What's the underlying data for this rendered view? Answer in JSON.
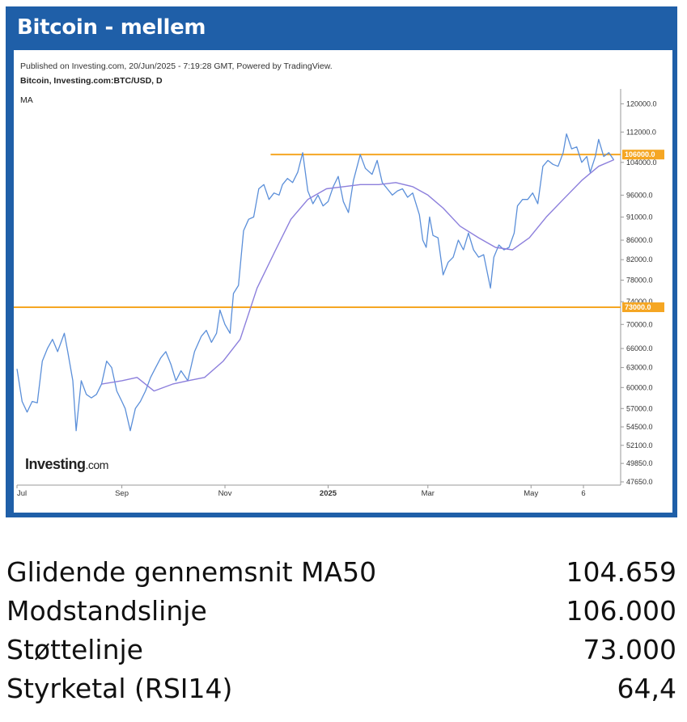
{
  "header": {
    "title": "Bitcoin - mellem"
  },
  "chart": {
    "published": "Published on Investing.com, 20/Jun/2025 - 7:19:28 GMT, Powered by TradingView.",
    "symbol": "Bitcoin, Investing.com:BTC/USD, D",
    "indicator_label": "MA",
    "logo_main": "Investing",
    "logo_suffix": ".com"
  },
  "chart_data": {
    "type": "line",
    "y_scale": "log",
    "ylim": [
      47650,
      122000
    ],
    "y_ticks": [
      "120000.0",
      "112000.0",
      "104000.0",
      "96000.0",
      "91000.0",
      "86000.0",
      "82000.0",
      "78000.0",
      "74000.0",
      "70000.0",
      "66000.0",
      "63000.0",
      "60000.0",
      "57000.0",
      "54500.0",
      "52100.0",
      "49850.0",
      "47650.0"
    ],
    "x_ticks": [
      "Jul",
      "Sep",
      "Nov",
      "2025",
      "Mar",
      "May",
      "6"
    ],
    "horizontal_levels": [
      {
        "value": 106000,
        "label": "106000.0",
        "color": "#f5a623"
      },
      {
        "value": 73000,
        "label": "73000.0",
        "color": "#f5a623"
      }
    ],
    "series": [
      {
        "name": "BTC/USD",
        "color": "#5b8fd9",
        "values": [
          [
            "2024-07-01",
            62800
          ],
          [
            "2024-07-04",
            58000
          ],
          [
            "2024-07-07",
            56500
          ],
          [
            "2024-07-10",
            58000
          ],
          [
            "2024-07-13",
            57800
          ],
          [
            "2024-07-16",
            64000
          ],
          [
            "2024-07-19",
            66000
          ],
          [
            "2024-07-22",
            67500
          ],
          [
            "2024-07-25",
            65500
          ],
          [
            "2024-07-29",
            68500
          ],
          [
            "2024-07-31",
            65500
          ],
          [
            "2024-08-03",
            61000
          ],
          [
            "2024-08-05",
            54000
          ],
          [
            "2024-08-08",
            61000
          ],
          [
            "2024-08-11",
            59000
          ],
          [
            "2024-08-14",
            58500
          ],
          [
            "2024-08-17",
            59000
          ],
          [
            "2024-08-20",
            60500
          ],
          [
            "2024-08-23",
            64000
          ],
          [
            "2024-08-26",
            63000
          ],
          [
            "2024-08-29",
            59500
          ],
          [
            "2024-09-01",
            58000
          ],
          [
            "2024-09-03",
            57000
          ],
          [
            "2024-09-06",
            54000
          ],
          [
            "2024-09-09",
            57000
          ],
          [
            "2024-09-12",
            58000
          ],
          [
            "2024-09-15",
            59500
          ],
          [
            "2024-09-18",
            61500
          ],
          [
            "2024-09-21",
            63000
          ],
          [
            "2024-09-24",
            64500
          ],
          [
            "2024-09-27",
            65500
          ],
          [
            "2024-09-30",
            63500
          ],
          [
            "2024-10-03",
            61000
          ],
          [
            "2024-10-06",
            62500
          ],
          [
            "2024-10-10",
            61000
          ],
          [
            "2024-10-14",
            65500
          ],
          [
            "2024-10-18",
            68000
          ],
          [
            "2024-10-21",
            69000
          ],
          [
            "2024-10-24",
            67000
          ],
          [
            "2024-10-27",
            68500
          ],
          [
            "2024-10-29",
            72500
          ],
          [
            "2024-11-01",
            70000
          ],
          [
            "2024-11-04",
            68500
          ],
          [
            "2024-11-06",
            75500
          ],
          [
            "2024-11-09",
            77000
          ],
          [
            "2024-11-12",
            88000
          ],
          [
            "2024-11-15",
            90500
          ],
          [
            "2024-11-18",
            91000
          ],
          [
            "2024-11-21",
            97500
          ],
          [
            "2024-11-24",
            98500
          ],
          [
            "2024-11-27",
            95000
          ],
          [
            "2024-11-30",
            96500
          ],
          [
            "2024-12-03",
            96000
          ],
          [
            "2024-12-05",
            98500
          ],
          [
            "2024-12-08",
            100000
          ],
          [
            "2024-12-11",
            99000
          ],
          [
            "2024-12-14",
            101500
          ],
          [
            "2024-12-17",
            106500
          ],
          [
            "2024-12-20",
            97000
          ],
          [
            "2024-12-23",
            94000
          ],
          [
            "2024-12-26",
            96000
          ],
          [
            "2024-12-29",
            93500
          ],
          [
            "2025-01-01",
            94500
          ],
          [
            "2025-01-04",
            98000
          ],
          [
            "2025-01-07",
            100500
          ],
          [
            "2025-01-10",
            94500
          ],
          [
            "2025-01-13",
            92000
          ],
          [
            "2025-01-16",
            99500
          ],
          [
            "2025-01-20",
            106000
          ],
          [
            "2025-01-23",
            102500
          ],
          [
            "2025-01-27",
            101000
          ],
          [
            "2025-01-30",
            104500
          ],
          [
            "2025-02-02",
            99000
          ],
          [
            "2025-02-05",
            97500
          ],
          [
            "2025-02-08",
            96000
          ],
          [
            "2025-02-11",
            97000
          ],
          [
            "2025-02-14",
            97500
          ],
          [
            "2025-02-17",
            95500
          ],
          [
            "2025-02-20",
            96500
          ],
          [
            "2025-02-24",
            91500
          ],
          [
            "2025-02-26",
            86000
          ],
          [
            "2025-02-28",
            84500
          ],
          [
            "2025-03-02",
            91000
          ],
          [
            "2025-03-04",
            87000
          ],
          [
            "2025-03-07",
            86500
          ],
          [
            "2025-03-10",
            79000
          ],
          [
            "2025-03-13",
            81500
          ],
          [
            "2025-03-16",
            82500
          ],
          [
            "2025-03-19",
            86000
          ],
          [
            "2025-03-22",
            84000
          ],
          [
            "2025-03-25",
            87500
          ],
          [
            "2025-03-28",
            84000
          ],
          [
            "2025-03-31",
            82500
          ],
          [
            "2025-04-03",
            83000
          ],
          [
            "2025-04-07",
            76500
          ],
          [
            "2025-04-09",
            82500
          ],
          [
            "2025-04-12",
            85000
          ],
          [
            "2025-04-15",
            84000
          ],
          [
            "2025-04-18",
            84500
          ],
          [
            "2025-04-21",
            87500
          ],
          [
            "2025-04-23",
            93500
          ],
          [
            "2025-04-26",
            95000
          ],
          [
            "2025-04-29",
            95000
          ],
          [
            "2025-05-02",
            96500
          ],
          [
            "2025-05-05",
            94000
          ],
          [
            "2025-05-08",
            103000
          ],
          [
            "2025-05-11",
            104500
          ],
          [
            "2025-05-14",
            103500
          ],
          [
            "2025-05-17",
            103000
          ],
          [
            "2025-05-20",
            106500
          ],
          [
            "2025-05-22",
            111500
          ],
          [
            "2025-05-25",
            107500
          ],
          [
            "2025-05-28",
            108000
          ],
          [
            "2025-05-31",
            104000
          ],
          [
            "2025-06-03",
            105500
          ],
          [
            "2025-06-05",
            101500
          ],
          [
            "2025-06-08",
            105500
          ],
          [
            "2025-06-10",
            110000
          ],
          [
            "2025-06-13",
            105500
          ],
          [
            "2025-06-16",
            106500
          ],
          [
            "2025-06-19",
            104600
          ]
        ]
      },
      {
        "name": "MA50",
        "color": "#8c7fdc",
        "values": [
          [
            "2024-08-20",
            60500
          ],
          [
            "2024-09-01",
            61000
          ],
          [
            "2024-09-10",
            61500
          ],
          [
            "2024-09-20",
            59500
          ],
          [
            "2024-10-01",
            60500
          ],
          [
            "2024-10-10",
            61000
          ],
          [
            "2024-10-20",
            61500
          ],
          [
            "2024-10-31",
            64000
          ],
          [
            "2024-11-10",
            67500
          ],
          [
            "2024-11-20",
            76500
          ],
          [
            "2024-12-01",
            84000
          ],
          [
            "2024-12-10",
            90500
          ],
          [
            "2024-12-20",
            95000
          ],
          [
            "2024-12-31",
            97500
          ],
          [
            "2025-01-10",
            98000
          ],
          [
            "2025-01-20",
            98500
          ],
          [
            "2025-01-31",
            98500
          ],
          [
            "2025-02-10",
            99000
          ],
          [
            "2025-02-20",
            98000
          ],
          [
            "2025-03-01",
            96000
          ],
          [
            "2025-03-10",
            93000
          ],
          [
            "2025-03-20",
            89000
          ],
          [
            "2025-03-31",
            86500
          ],
          [
            "2025-04-10",
            84500
          ],
          [
            "2025-04-20",
            84000
          ],
          [
            "2025-04-30",
            86500
          ],
          [
            "2025-05-10",
            91000
          ],
          [
            "2025-05-20",
            95000
          ],
          [
            "2025-05-31",
            99500
          ],
          [
            "2025-06-10",
            103000
          ],
          [
            "2025-06-19",
            104659
          ]
        ]
      }
    ]
  },
  "stats": [
    {
      "label": "Glidende gennemsnit MA50",
      "value": "104.659"
    },
    {
      "label": "Modstandslinje",
      "value": "106.000"
    },
    {
      "label": "Støttelinje",
      "value": "73.000"
    },
    {
      "label": "Styrketal (RSI14)",
      "value": "64,4"
    }
  ]
}
